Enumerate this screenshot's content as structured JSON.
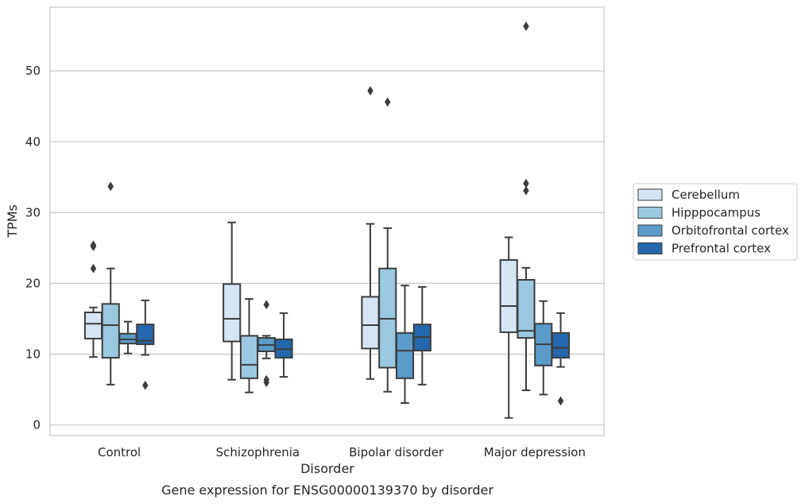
{
  "chart_data": {
    "type": "box",
    "title": "",
    "caption": "Gene expression for ENSG00000139370 by disorder",
    "xlabel": "Disorder",
    "ylabel": "TPMs",
    "ylim": [
      -1.5,
      59
    ],
    "yticks": [
      0,
      10,
      20,
      30,
      40,
      50
    ],
    "grid": "horizontal",
    "legend_position": "right",
    "categories": [
      "Control",
      "Schizophrenia",
      "Bipolar disorder",
      "Major depression"
    ],
    "series": [
      {
        "name": "Cerebellum",
        "color": "#d6e5f3",
        "boxes": [
          {
            "whisker_low": 9.6,
            "q1": 12.2,
            "median": 14.3,
            "q3": 15.9,
            "whisker_high": 16.6,
            "outliers": [
              22.1,
              25.2,
              25.4
            ]
          },
          {
            "whisker_low": 6.4,
            "q1": 11.8,
            "median": 15.0,
            "q3": 19.9,
            "whisker_high": 28.6,
            "outliers": []
          },
          {
            "whisker_low": 6.5,
            "q1": 10.8,
            "median": 14.1,
            "q3": 18.1,
            "whisker_high": 28.4,
            "outliers": [
              47.2
            ]
          },
          {
            "whisker_low": 1.0,
            "q1": 13.1,
            "median": 16.8,
            "q3": 23.3,
            "whisker_high": 26.5,
            "outliers": []
          }
        ]
      },
      {
        "name": "Hipppocampus",
        "color": "#9ac8e0",
        "boxes": [
          {
            "whisker_low": 5.7,
            "q1": 9.5,
            "median": 14.1,
            "q3": 17.1,
            "whisker_high": 22.1,
            "outliers": [
              33.7
            ]
          },
          {
            "whisker_low": 4.6,
            "q1": 6.6,
            "median": 8.5,
            "q3": 12.6,
            "whisker_high": 17.8,
            "outliers": []
          },
          {
            "whisker_low": 4.7,
            "q1": 8.1,
            "median": 15.0,
            "q3": 22.1,
            "whisker_high": 27.8,
            "outliers": [
              45.6
            ]
          },
          {
            "whisker_low": 4.9,
            "q1": 12.3,
            "median": 13.3,
            "q3": 20.5,
            "whisker_high": 22.2,
            "outliers": [
              33.1,
              34.1,
              56.3
            ]
          }
        ]
      },
      {
        "name": "Orbitofrontal cortex",
        "color": "#5a9bc9",
        "boxes": [
          {
            "whisker_low": 10.1,
            "q1": 11.5,
            "median": 12.1,
            "q3": 12.9,
            "whisker_high": 14.6,
            "outliers": []
          },
          {
            "whisker_low": 9.4,
            "q1": 10.4,
            "median": 11.3,
            "q3": 12.3,
            "whisker_high": 12.6,
            "outliers": [
              6.0,
              6.4,
              17.0
            ]
          },
          {
            "whisker_low": 3.1,
            "q1": 6.6,
            "median": 10.5,
            "q3": 13.0,
            "whisker_high": 19.7,
            "outliers": []
          },
          {
            "whisker_low": 4.3,
            "q1": 8.4,
            "median": 11.4,
            "q3": 14.3,
            "whisker_high": 17.5,
            "outliers": []
          }
        ]
      },
      {
        "name": "Prefrontal cortex",
        "color": "#2368ac",
        "boxes": [
          {
            "whisker_low": 9.9,
            "q1": 11.4,
            "median": 11.9,
            "q3": 14.2,
            "whisker_high": 17.6,
            "outliers": [
              5.6
            ]
          },
          {
            "whisker_low": 6.8,
            "q1": 9.5,
            "median": 10.7,
            "q3": 12.1,
            "whisker_high": 15.8,
            "outliers": []
          },
          {
            "whisker_low": 5.7,
            "q1": 10.5,
            "median": 12.4,
            "q3": 14.2,
            "whisker_high": 19.5,
            "outliers": []
          },
          {
            "whisker_low": 8.2,
            "q1": 9.5,
            "median": 10.9,
            "q3": 13.0,
            "whisker_high": 15.8,
            "outliers": [
              3.4
            ]
          }
        ]
      }
    ]
  }
}
